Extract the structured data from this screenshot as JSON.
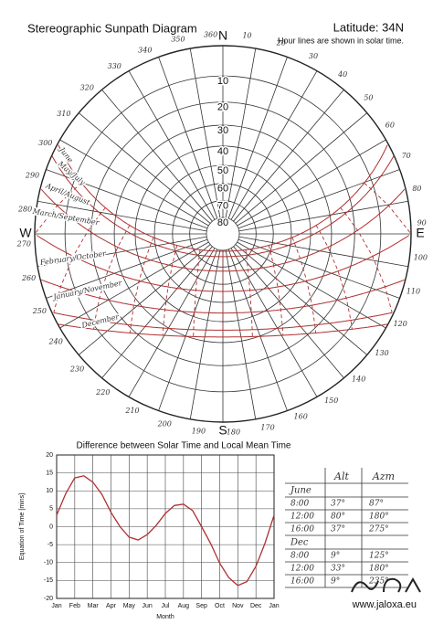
{
  "sunpath": {
    "title": "Stereographic Sunpath Diagram",
    "latitude": "Latitude: 34N",
    "note": "Hour lines are shown in solar time.",
    "cardinals": {
      "north": "N",
      "east": "E",
      "south": "S",
      "west": "W"
    },
    "altitude_labels": [
      "10",
      "20",
      "30",
      "40",
      "50",
      "60",
      "70",
      "80"
    ],
    "azimuth_labels": [
      "10",
      "20",
      "30",
      "40",
      "50",
      "60",
      "70",
      "80",
      "90",
      "100",
      "110",
      "120",
      "130",
      "140",
      "150",
      "160",
      "170",
      "180",
      "190",
      "200",
      "210",
      "220",
      "230",
      "240",
      "250",
      "260",
      "270",
      "280",
      "290",
      "300",
      "310",
      "320",
      "330",
      "340",
      "350",
      "360°"
    ],
    "path_labels": [
      "June",
      "May/July",
      "April/August",
      "March/September",
      "February/October",
      "January/November",
      "December"
    ]
  },
  "chart_data": {
    "type": "line",
    "title": "Difference between Solar Time and Local Mean Time",
    "ylabel": "Equation of Time [mins]",
    "xlabel": "Month",
    "x": [
      0,
      0.5,
      1,
      1.5,
      2,
      2.5,
      3,
      3.5,
      4,
      4.5,
      5,
      5.5,
      6,
      6.5,
      7,
      7.5,
      8,
      8.5,
      9,
      9.5,
      10,
      10.5,
      11,
      11.5,
      12
    ],
    "values": [
      3.2,
      9.2,
      13.6,
      14.2,
      12.4,
      9.0,
      4.0,
      0.0,
      -2.9,
      -3.7,
      -2.2,
      0.4,
      3.7,
      5.9,
      6.3,
      4.5,
      0.0,
      -4.7,
      -10.2,
      -14.2,
      -16.4,
      -15.3,
      -11.0,
      -4.6,
      3.2
    ],
    "color": "#b03030",
    "xlim": [
      0,
      12
    ],
    "ylim": [
      -20,
      20
    ],
    "xticks": [
      {
        "value": 0,
        "label": "Jan"
      },
      {
        "value": 1,
        "label": "Feb"
      },
      {
        "value": 2,
        "label": "Mar"
      },
      {
        "value": 3,
        "label": "Apr"
      },
      {
        "value": 4,
        "label": "May"
      },
      {
        "value": 5,
        "label": "Jun"
      },
      {
        "value": 6,
        "label": "Jul"
      },
      {
        "value": 7,
        "label": "Aug"
      },
      {
        "value": 8,
        "label": "Sep"
      },
      {
        "value": 9,
        "label": "Oct"
      },
      {
        "value": 10,
        "label": "Nov"
      },
      {
        "value": 11,
        "label": "Dec"
      },
      {
        "value": 12,
        "label": "Jan"
      }
    ],
    "yticks": [
      20,
      15,
      10,
      5,
      0,
      -5,
      -10,
      -15,
      -20
    ],
    "grid": true
  },
  "table": {
    "header": [
      "Alt",
      "Azm"
    ],
    "groups": [
      {
        "name": "June",
        "rows": [
          [
            "8:00",
            "37°",
            "87°"
          ],
          [
            "12:00",
            "80°",
            "180°"
          ],
          [
            "16:00",
            "37°",
            "275°"
          ]
        ]
      },
      {
        "name": "Dec",
        "rows": [
          [
            "8:00",
            "9°",
            "125°"
          ],
          [
            "12:00",
            "33°",
            "180°"
          ],
          [
            "16:00",
            "9°",
            "235°"
          ]
        ]
      }
    ]
  },
  "footer": {
    "url": "www.jaloxa.eu"
  }
}
